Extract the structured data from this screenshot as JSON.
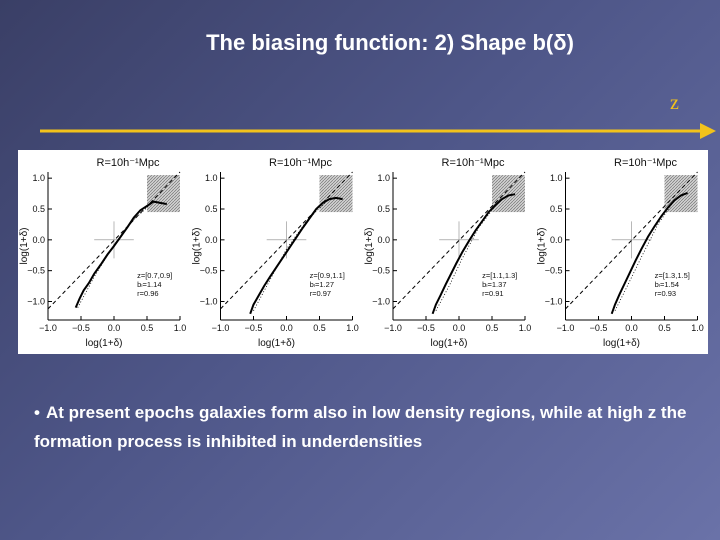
{
  "slide": {
    "title": "The biasing function: 2) Shape b(δ)",
    "z_label": "z",
    "bullet_text": "At present epochs galaxies form  also in low density  regions, while at high z the formation process is inhibited in underdensities",
    "colors": {
      "arrow": "#f2c21b",
      "text": "#ffffff"
    }
  },
  "chart_data": [
    {
      "type": "line",
      "title": "R=10h⁻¹Mpc",
      "xlabel": "log(1+δ)",
      "ylabel": "log(1+δ)",
      "xlim": [
        -1.0,
        1.0
      ],
      "ylim": [
        -1.3,
        1.1
      ],
      "xticks": [
        "−1.0",
        "−0.5",
        "0.0",
        "0.5",
        "1.0"
      ],
      "yticks": [
        "−1.0",
        "−0.5",
        "0.0",
        "0.5",
        "1.0"
      ],
      "annotation": [
        "z=[0.7,0.9]",
        "bₗ=1.14",
        "r=0.96"
      ],
      "series": [
        {
          "style": "solid",
          "x": [
            -0.58,
            -0.52,
            -0.46,
            -0.38,
            -0.3,
            -0.2,
            -0.1,
            0.0,
            0.1,
            0.2,
            0.3,
            0.4,
            0.5,
            0.6,
            0.7,
            0.8
          ],
          "y": [
            -1.1,
            -0.95,
            -0.82,
            -0.7,
            -0.55,
            -0.4,
            -0.24,
            -0.1,
            0.05,
            0.2,
            0.36,
            0.48,
            0.55,
            0.62,
            0.6,
            0.58
          ]
        },
        {
          "style": "dashed",
          "x": [
            -1.0,
            1.0
          ],
          "y": [
            -1.12,
            1.1
          ]
        },
        {
          "style": "dotted",
          "x": [
            -0.55,
            -0.3,
            0.0,
            0.3,
            0.6
          ],
          "y": [
            -1.1,
            -0.6,
            -0.08,
            0.33,
            0.62
          ]
        }
      ]
    },
    {
      "type": "line",
      "title": "R=10h⁻¹Mpc",
      "xlabel": "log(1+δ)",
      "ylabel": "log(1+δ)",
      "xlim": [
        -1.0,
        1.0
      ],
      "ylim": [
        -1.3,
        1.1
      ],
      "xticks": [
        "−1.0",
        "−0.5",
        "0.0",
        "0.5",
        "1.0"
      ],
      "yticks": [
        "−1.0",
        "−0.5",
        "0.0",
        "0.5",
        "1.0"
      ],
      "annotation": [
        "z=[0.9,1.1]",
        "bₗ=1.27",
        "r=0.97"
      ],
      "series": [
        {
          "style": "solid",
          "x": [
            -0.55,
            -0.5,
            -0.42,
            -0.34,
            -0.25,
            -0.15,
            -0.05,
            0.05,
            0.15,
            0.25,
            0.35,
            0.45,
            0.55,
            0.65,
            0.75,
            0.85
          ],
          "y": [
            -1.2,
            -1.05,
            -0.9,
            -0.75,
            -0.6,
            -0.44,
            -0.28,
            -0.12,
            0.04,
            0.2,
            0.35,
            0.5,
            0.6,
            0.66,
            0.68,
            0.66
          ]
        },
        {
          "style": "dashed",
          "x": [
            -1.0,
            1.0
          ],
          "y": [
            -1.12,
            1.1
          ]
        },
        {
          "style": "dotted",
          "x": [
            -0.5,
            -0.25,
            0.0,
            0.3,
            0.6
          ],
          "y": [
            -1.15,
            -0.65,
            -0.15,
            0.3,
            0.62
          ]
        }
      ]
    },
    {
      "type": "line",
      "title": "R=10h⁻¹Mpc",
      "xlabel": "log(1+δ)",
      "ylabel": "log(1+δ)",
      "xlim": [
        -1.0,
        1.0
      ],
      "ylim": [
        -1.3,
        1.1
      ],
      "xticks": [
        "−1.0",
        "−0.5",
        "0.0",
        "0.5",
        "1.0"
      ],
      "yticks": [
        "−1.0",
        "−0.5",
        "0.0",
        "0.5",
        "1.0"
      ],
      "annotation": [
        "z=[1.1,1.3]",
        "bₗ=1.37",
        "r=0.91"
      ],
      "series": [
        {
          "style": "solid",
          "x": [
            -0.4,
            -0.35,
            -0.28,
            -0.2,
            -0.12,
            -0.04,
            0.05,
            0.15,
            0.25,
            0.35,
            0.45,
            0.55,
            0.65,
            0.75,
            0.85
          ],
          "y": [
            -1.2,
            -1.05,
            -0.9,
            -0.72,
            -0.55,
            -0.38,
            -0.2,
            -0.02,
            0.15,
            0.3,
            0.45,
            0.56,
            0.66,
            0.72,
            0.74
          ]
        },
        {
          "style": "dashed",
          "x": [
            -1.0,
            1.0
          ],
          "y": [
            -1.12,
            1.1
          ]
        },
        {
          "style": "dotted",
          "x": [
            -0.35,
            -0.15,
            0.05,
            0.3,
            0.6
          ],
          "y": [
            -1.15,
            -0.75,
            -0.3,
            0.2,
            0.62
          ]
        }
      ]
    },
    {
      "type": "line",
      "title": "R=10h⁻¹Mpc",
      "xlabel": "log(1+δ)",
      "ylabel": "log(1+δ)",
      "xlim": [
        -1.0,
        1.0
      ],
      "ylim": [
        -1.3,
        1.1
      ],
      "xticks": [
        "−1.0",
        "−0.5",
        "0.0",
        "0.5",
        "1.0"
      ],
      "yticks": [
        "−1.0",
        "−0.5",
        "0.0",
        "0.5",
        "1.0"
      ],
      "annotation": [
        "z=[1.3,1.5]",
        "bₗ=1.54",
        "r=0.93"
      ],
      "series": [
        {
          "style": "solid",
          "x": [
            -0.3,
            -0.25,
            -0.18,
            -0.1,
            -0.02,
            0.06,
            0.15,
            0.25,
            0.35,
            0.45,
            0.55,
            0.65,
            0.75,
            0.85
          ],
          "y": [
            -1.2,
            -1.05,
            -0.88,
            -0.7,
            -0.52,
            -0.34,
            -0.15,
            0.05,
            0.22,
            0.38,
            0.52,
            0.64,
            0.72,
            0.76
          ]
        },
        {
          "style": "dashed",
          "x": [
            -1.0,
            1.0
          ],
          "y": [
            -1.12,
            1.1
          ]
        },
        {
          "style": "dotted",
          "x": [
            -0.25,
            -0.05,
            0.15,
            0.4,
            0.65
          ],
          "y": [
            -1.15,
            -0.72,
            -0.28,
            0.25,
            0.64
          ]
        }
      ]
    }
  ]
}
